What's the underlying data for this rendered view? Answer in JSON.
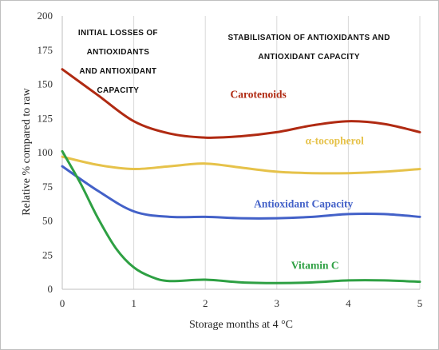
{
  "chart_data": {
    "type": "line",
    "xlabel": "Storage months at 4 °C",
    "ylabel": "Relative % compared to raw",
    "xlim": [
      0,
      5
    ],
    "ylim": [
      0,
      200
    ],
    "xticks": [
      "0",
      "1",
      "2",
      "3",
      "4",
      "5"
    ],
    "yticks": [
      "0",
      "25",
      "50",
      "75",
      "100",
      "125",
      "150",
      "175",
      "200"
    ],
    "grid": "vertical",
    "annotations": [
      [
        "INITIAL LOSSES OF",
        "ANTIOXIDANTS",
        "AND ANTIOXIDANT",
        "CAPACITY"
      ],
      [
        "STABILISATION OF ANTIOXIDANTS AND",
        "ANTIOXIDANT CAPACITY"
      ]
    ],
    "series": [
      {
        "name": "Carotenoids",
        "color": "#b02a12",
        "x": [
          0,
          0.5,
          1,
          1.5,
          2,
          2.5,
          3,
          3.5,
          4,
          4.5,
          5
        ],
        "y": [
          161,
          142,
          123,
          114,
          111,
          112,
          115,
          120,
          123,
          121,
          115
        ]
      },
      {
        "name": "α-tocopherol",
        "color": "#e6c24a",
        "x": [
          0,
          0.5,
          1,
          1.5,
          2,
          2.5,
          3,
          3.5,
          4,
          4.5,
          5
        ],
        "y": [
          97,
          91,
          88,
          90,
          92,
          89,
          86,
          85,
          85,
          86,
          88
        ]
      },
      {
        "name": "Antioxidant Capacity",
        "color": "#4361c8",
        "x": [
          0,
          0.5,
          1,
          1.5,
          2,
          2.5,
          3,
          3.5,
          4,
          4.5,
          5
        ],
        "y": [
          90,
          72,
          57,
          53,
          53,
          52,
          52,
          53,
          55,
          55,
          53
        ]
      },
      {
        "name": "Vitamin C",
        "color": "#2ea043",
        "x": [
          0,
          0.25,
          0.5,
          0.75,
          1,
          1.25,
          1.5,
          2,
          2.5,
          3,
          3.5,
          4,
          4.5,
          5
        ],
        "y": [
          101,
          78,
          52,
          30,
          16,
          9,
          6,
          7,
          5,
          4.5,
          5,
          6.5,
          6.5,
          5.5
        ]
      }
    ]
  }
}
